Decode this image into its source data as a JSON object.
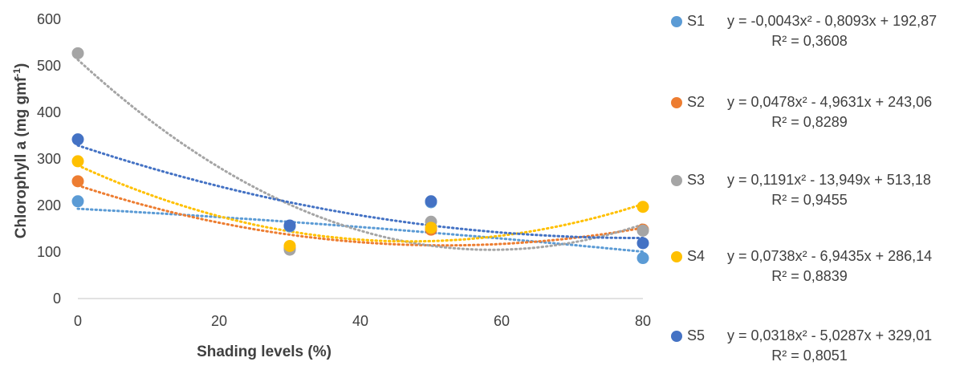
{
  "chart_data": {
    "type": "scatter",
    "title": "",
    "xlabel": "Shading levels (%)",
    "ylabel": "Chlorophyll a (mg gmf",
    "ylabel_superscript": "-1",
    "ylabel_suffix": ")",
    "xlim": [
      0,
      80
    ],
    "ylim": [
      0,
      600
    ],
    "xticks": [
      "0",
      "20",
      "40",
      "60",
      "80"
    ],
    "yticks": [
      "0",
      "100",
      "200",
      "300",
      "400",
      "500",
      "600"
    ],
    "grid": false,
    "trendline": "polynomial-2",
    "legend_position": "right",
    "series": [
      {
        "name": "S1",
        "color": "#5B9BD5",
        "x": [
          0,
          30,
          50,
          80
        ],
        "y": [
          209,
          155,
          207,
          87
        ],
        "trend": [
          -0.0043,
          -0.8093,
          192.87
        ],
        "equation": "y = -0,0043x² - 0,8093x + 192,87",
        "r2": "R² = 0,3608"
      },
      {
        "name": "S2",
        "color": "#ED7D31",
        "x": [
          0,
          30,
          50,
          80
        ],
        "y": [
          252,
          108,
          148,
          148
        ],
        "trend": [
          0.0478,
          -4.9631,
          243.06
        ],
        "equation": "y = 0,0478x² - 4,9631x + 243,06",
        "r2": "R² = 0,8289"
      },
      {
        "name": "S3",
        "color": "#A5A5A5",
        "x": [
          0,
          30,
          50,
          80
        ],
        "y": [
          527,
          105,
          165,
          146
        ],
        "trend": [
          0.1191,
          -13.949,
          513.18
        ],
        "equation": "y = 0,1191x² - 13,949x + 513,18",
        "r2": "R² = 0,9455"
      },
      {
        "name": "S4",
        "color": "#FFC000",
        "x": [
          0,
          30,
          50,
          80
        ],
        "y": [
          295,
          113,
          152,
          197
        ],
        "trend": [
          0.0738,
          -6.9435,
          286.14
        ],
        "equation": "y = 0,0738x² - 6,9435x + 286,14",
        "r2": "R² = 0,8839"
      },
      {
        "name": "S5",
        "color": "#4472C4",
        "x": [
          0,
          30,
          50,
          80
        ],
        "y": [
          342,
          157,
          209,
          119
        ],
        "trend": [
          0.0318,
          -5.0287,
          329.01
        ],
        "equation": "y = 0,0318x² - 5,0287x + 329,01",
        "r2": "R² = 0,8051"
      }
    ]
  }
}
